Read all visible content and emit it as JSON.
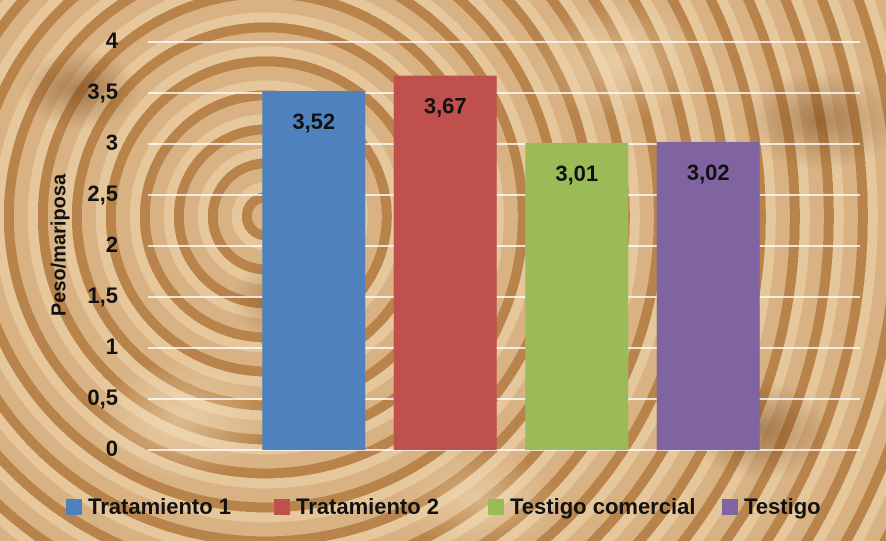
{
  "chart_data": {
    "type": "bar",
    "y_label": "Peso/mariposa",
    "categories": [
      null
    ],
    "series": [
      {
        "name": "Tratamiento 1",
        "color": "#4f81bd",
        "values": [
          3.52
        ],
        "value_labels": [
          "3,52"
        ]
      },
      {
        "name": "Tratamiento 2",
        "color": "#c0504d",
        "values": [
          3.67
        ],
        "value_labels": [
          "3,67"
        ]
      },
      {
        "name": "Testigo comercial",
        "color": "#9bbb59",
        "values": [
          3.01
        ],
        "value_labels": [
          "3,01"
        ]
      },
      {
        "name": "Testigo",
        "color": "#8064a2",
        "values": [
          3.02
        ],
        "value_labels": [
          "3,02"
        ]
      }
    ],
    "ylim": [
      0,
      4
    ],
    "yticks": [
      0,
      {
        "value": 0.5,
        "label": "0,5"
      },
      1,
      {
        "value": 1.5,
        "label": "1,5"
      },
      2,
      {
        "value": 2.5,
        "label": "2,5"
      },
      3,
      {
        "value": 3.5,
        "label": "3,5"
      },
      4
    ],
    "grid": true,
    "legend": "bottom"
  }
}
